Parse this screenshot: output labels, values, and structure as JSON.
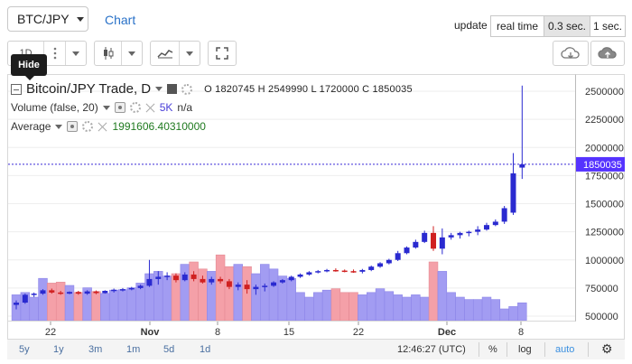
{
  "header": {
    "pair": "BTC/JPY",
    "chart_link": "Chart",
    "update_label": "update",
    "update_buttons": [
      {
        "label": "real time",
        "active": false
      },
      {
        "label": "0.3 sec.",
        "active": true
      },
      {
        "label": "1 sec.",
        "active": false
      }
    ]
  },
  "toolbar": {
    "interval": "1D",
    "tooltip": "Hide",
    "icons": [
      "candlestick-icon",
      "indicators-icon",
      "fullscreen-icon",
      "cloud-download-icon",
      "cloud-upload-icon"
    ]
  },
  "legend": {
    "symbol": "Bitcoin/JPY Trade, D",
    "ohlc": "O 1820745 H 2549990 L 1720000 C 1850035",
    "volume_label": "Volume (false, 20)",
    "volume_value": "5K",
    "volume_na": "n/a",
    "average_label": "Average",
    "average_value": "1991606.40310000",
    "volume_value_color": "#4a3fd8",
    "average_value_color": "#1f7a1f"
  },
  "chart_data": {
    "type": "candlestick",
    "y_ticks": [
      "2500000",
      "2250000",
      "2000000",
      "1750000",
      "1500000",
      "1250000",
      "1000000",
      "750000",
      "500000"
    ],
    "x_ticks": [
      "22",
      "Nov",
      "8",
      "15",
      "22",
      "Dec",
      "8"
    ],
    "last_price": "1850035",
    "last_price_color": "#5533ff",
    "up_color": "#2a2ad0",
    "down_color": "#d02020",
    "vol_up_color": "#a29cf2",
    "vol_down_color": "#f4a0a8",
    "candles": [
      {
        "o": 600000,
        "h": 640000,
        "l": 560000,
        "c": 620000,
        "v": 0.55
      },
      {
        "o": 620000,
        "h": 700000,
        "l": 610000,
        "c": 690000,
        "v": 0.6
      },
      {
        "o": 690000,
        "h": 710000,
        "l": 670000,
        "c": 700000,
        "v": 0.5
      },
      {
        "o": 700000,
        "h": 740000,
        "l": 690000,
        "c": 730000,
        "v": 0.9
      },
      {
        "o": 730000,
        "h": 745000,
        "l": 700000,
        "c": 710000,
        "v": 0.8
      },
      {
        "o": 710000,
        "h": 725000,
        "l": 690000,
        "c": 700000,
        "v": 0.82
      },
      {
        "o": 700000,
        "h": 720000,
        "l": 695000,
        "c": 715000,
        "v": 0.75
      },
      {
        "o": 715000,
        "h": 725000,
        "l": 690000,
        "c": 700000,
        "v": 0.6
      },
      {
        "o": 700000,
        "h": 730000,
        "l": 690000,
        "c": 720000,
        "v": 0.7
      },
      {
        "o": 720000,
        "h": 728000,
        "l": 695000,
        "c": 705000,
        "v": 0.62
      },
      {
        "o": 705000,
        "h": 730000,
        "l": 700000,
        "c": 725000,
        "v": 0.58
      },
      {
        "o": 725000,
        "h": 745000,
        "l": 710000,
        "c": 735000,
        "v": 0.65
      },
      {
        "o": 735000,
        "h": 750000,
        "l": 720000,
        "c": 740000,
        "v": 0.66
      },
      {
        "o": 740000,
        "h": 760000,
        "l": 730000,
        "c": 750000,
        "v": 0.7
      },
      {
        "o": 750000,
        "h": 780000,
        "l": 740000,
        "c": 770000,
        "v": 0.8
      },
      {
        "o": 770000,
        "h": 1000000,
        "l": 760000,
        "c": 830000,
        "v": 1.0
      },
      {
        "o": 830000,
        "h": 900000,
        "l": 780000,
        "c": 850000,
        "v": 1.05
      },
      {
        "o": 850000,
        "h": 890000,
        "l": 820000,
        "c": 860000,
        "v": 0.95
      },
      {
        "o": 860000,
        "h": 880000,
        "l": 800000,
        "c": 820000,
        "v": 1.0
      },
      {
        "o": 820000,
        "h": 890000,
        "l": 810000,
        "c": 870000,
        "v": 1.2
      },
      {
        "o": 870000,
        "h": 900000,
        "l": 810000,
        "c": 830000,
        "v": 1.25
      },
      {
        "o": 830000,
        "h": 860000,
        "l": 790000,
        "c": 800000,
        "v": 1.1
      },
      {
        "o": 800000,
        "h": 850000,
        "l": 780000,
        "c": 830000,
        "v": 1.05
      },
      {
        "o": 830000,
        "h": 850000,
        "l": 790000,
        "c": 810000,
        "v": 1.4
      },
      {
        "o": 810000,
        "h": 830000,
        "l": 740000,
        "c": 760000,
        "v": 1.15
      },
      {
        "o": 760000,
        "h": 800000,
        "l": 730000,
        "c": 780000,
        "v": 1.2
      },
      {
        "o": 780000,
        "h": 820000,
        "l": 700000,
        "c": 740000,
        "v": 1.15
      },
      {
        "o": 740000,
        "h": 780000,
        "l": 690000,
        "c": 760000,
        "v": 1.0
      },
      {
        "o": 760000,
        "h": 790000,
        "l": 720000,
        "c": 770000,
        "v": 1.2
      },
      {
        "o": 770000,
        "h": 810000,
        "l": 760000,
        "c": 800000,
        "v": 1.1
      },
      {
        "o": 800000,
        "h": 830000,
        "l": 790000,
        "c": 820000,
        "v": 0.95
      },
      {
        "o": 820000,
        "h": 860000,
        "l": 810000,
        "c": 850000,
        "v": 0.9
      },
      {
        "o": 850000,
        "h": 880000,
        "l": 840000,
        "c": 870000,
        "v": 0.6
      },
      {
        "o": 870000,
        "h": 900000,
        "l": 860000,
        "c": 890000,
        "v": 0.5
      },
      {
        "o": 890000,
        "h": 910000,
        "l": 880000,
        "c": 900000,
        "v": 0.6
      },
      {
        "o": 900000,
        "h": 920000,
        "l": 890000,
        "c": 910000,
        "v": 0.65
      },
      {
        "o": 910000,
        "h": 925000,
        "l": 895000,
        "c": 905000,
        "v": 0.68
      },
      {
        "o": 905000,
        "h": 915000,
        "l": 890000,
        "c": 900000,
        "v": 0.6
      },
      {
        "o": 900000,
        "h": 915000,
        "l": 885000,
        "c": 895000,
        "v": 0.6
      },
      {
        "o": 895000,
        "h": 920000,
        "l": 880000,
        "c": 910000,
        "v": 0.55
      },
      {
        "o": 910000,
        "h": 950000,
        "l": 900000,
        "c": 940000,
        "v": 0.6
      },
      {
        "o": 940000,
        "h": 980000,
        "l": 930000,
        "c": 970000,
        "v": 0.68
      },
      {
        "o": 970000,
        "h": 1010000,
        "l": 960000,
        "c": 1000000,
        "v": 0.62
      },
      {
        "o": 1000000,
        "h": 1080000,
        "l": 990000,
        "c": 1060000,
        "v": 0.55
      },
      {
        "o": 1060000,
        "h": 1120000,
        "l": 1050000,
        "c": 1110000,
        "v": 0.5
      },
      {
        "o": 1110000,
        "h": 1180000,
        "l": 1100000,
        "c": 1160000,
        "v": 0.55
      },
      {
        "o": 1160000,
        "h": 1260000,
        "l": 1150000,
        "c": 1240000,
        "v": 0.5
      },
      {
        "o": 1240000,
        "h": 1300000,
        "l": 1080000,
        "c": 1100000,
        "v": 1.25
      },
      {
        "o": 1100000,
        "h": 1280000,
        "l": 1050000,
        "c": 1200000,
        "v": 1.05
      },
      {
        "o": 1200000,
        "h": 1240000,
        "l": 1180000,
        "c": 1220000,
        "v": 0.6
      },
      {
        "o": 1220000,
        "h": 1250000,
        "l": 1190000,
        "c": 1240000,
        "v": 0.5
      },
      {
        "o": 1240000,
        "h": 1260000,
        "l": 1210000,
        "c": 1250000,
        "v": 0.45
      },
      {
        "o": 1250000,
        "h": 1300000,
        "l": 1220000,
        "c": 1270000,
        "v": 0.45
      },
      {
        "o": 1270000,
        "h": 1330000,
        "l": 1260000,
        "c": 1310000,
        "v": 0.5
      },
      {
        "o": 1310000,
        "h": 1360000,
        "l": 1300000,
        "c": 1340000,
        "v": 0.45
      },
      {
        "o": 1340000,
        "h": 1480000,
        "l": 1320000,
        "c": 1460000,
        "v": 0.25
      },
      {
        "o": 1420000,
        "h": 1950000,
        "l": 1400000,
        "c": 1770000,
        "v": 0.3
      },
      {
        "o": 1820745,
        "h": 2549990,
        "l": 1720000,
        "c": 1850035,
        "v": 0.38
      }
    ]
  },
  "footer": {
    "ranges": [
      "5y",
      "1y",
      "3m",
      "1m",
      "5d",
      "1d"
    ],
    "time": "12:46:27 (UTC)",
    "percent": "%",
    "log": "log",
    "auto": "auto"
  }
}
